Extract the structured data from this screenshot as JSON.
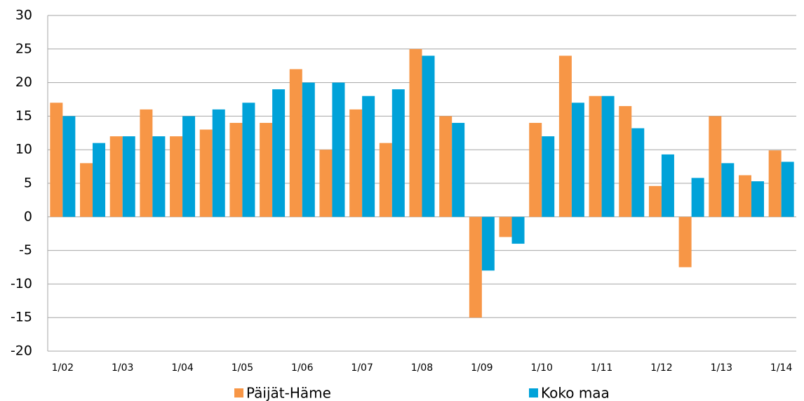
{
  "chart_data": {
    "type": "bar",
    "categories": [
      "1/02",
      null,
      "1/03",
      null,
      "1/04",
      null,
      "1/05",
      null,
      "1/06",
      null,
      "1/07",
      null,
      "1/08",
      null,
      "1/09",
      null,
      "1/10",
      null,
      "1/11",
      null,
      "1/12",
      null,
      "1/13",
      null,
      "1/14"
    ],
    "series": [
      {
        "name": "Päijät-Häme",
        "color": "#f79646",
        "values": [
          17,
          8,
          12,
          16,
          12,
          13,
          14,
          14,
          22,
          10,
          16,
          11,
          25,
          15,
          -15,
          -3,
          14,
          24,
          18,
          16.5,
          4.6,
          -7.5,
          15,
          6.2,
          9.9
        ]
      },
      {
        "name": "Koko maa",
        "color": "#00a2d9",
        "values": [
          15,
          11,
          12,
          12,
          15,
          16,
          17,
          19,
          20,
          20,
          18,
          19,
          24,
          14,
          -8,
          -4,
          12,
          17,
          18,
          13.2,
          9.3,
          5.8,
          8,
          5.3,
          8.2
        ]
      }
    ],
    "ylim": [
      -20,
      30
    ],
    "yticks": [
      -20,
      -15,
      -10,
      -5,
      0,
      5,
      10,
      15,
      20,
      25,
      30
    ],
    "grid": true
  }
}
